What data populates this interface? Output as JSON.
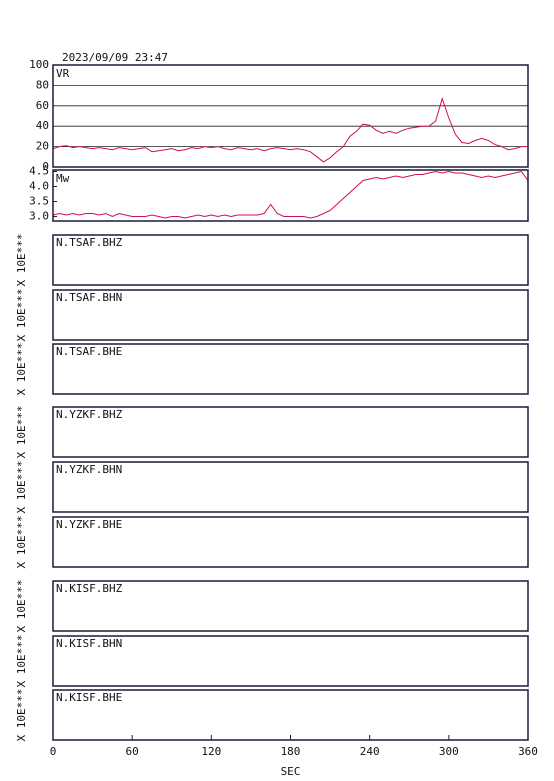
{
  "title": "2023/09/09  23:47",
  "chart_data": [
    {
      "type": "line",
      "label": "VR",
      "color": "#d0104c",
      "grid": true,
      "xlim": [
        0,
        360
      ],
      "ylim": [
        0,
        100
      ],
      "yticks": [
        0,
        20,
        40,
        60,
        80,
        100
      ],
      "x": [
        0,
        5,
        10,
        15,
        20,
        25,
        30,
        35,
        40,
        45,
        50,
        55,
        60,
        65,
        70,
        75,
        80,
        85,
        90,
        95,
        100,
        105,
        110,
        115,
        120,
        125,
        130,
        135,
        140,
        145,
        150,
        155,
        160,
        165,
        170,
        175,
        180,
        185,
        190,
        195,
        200,
        205,
        210,
        215,
        220,
        225,
        230,
        235,
        240,
        245,
        250,
        255,
        260,
        265,
        270,
        275,
        280,
        285,
        290,
        295,
        300,
        305,
        310,
        315,
        320,
        325,
        330,
        335,
        340,
        345,
        350,
        355,
        360
      ],
      "values": [
        18,
        20,
        21,
        19,
        20,
        19,
        18,
        19,
        18,
        17,
        19,
        18,
        17,
        18,
        19,
        15,
        16,
        17,
        18,
        16,
        17,
        19,
        18,
        20,
        19,
        20,
        18,
        17,
        19,
        18,
        17,
        18,
        16,
        18,
        19,
        18,
        17,
        18,
        17,
        15,
        10,
        5,
        9,
        15,
        20,
        30,
        35,
        42,
        41,
        36,
        33,
        35,
        33,
        36,
        38,
        39,
        40,
        40,
        45,
        67,
        48,
        32,
        24,
        23,
        26,
        28,
        26,
        22,
        20,
        17,
        18,
        20,
        20
      ]
    },
    {
      "type": "line",
      "label": "Mw",
      "color": "#d0104c",
      "grid": false,
      "xlim": [
        0,
        360
      ],
      "ylim": [
        2.85,
        4.55
      ],
      "yticks": [
        {
          "value": 3.0,
          "label": "3.0"
        },
        3.5,
        {
          "value": 4.0,
          "label": "4.0"
        },
        4.5
      ],
      "x": [
        0,
        5,
        10,
        15,
        20,
        25,
        30,
        35,
        40,
        45,
        50,
        55,
        60,
        65,
        70,
        75,
        80,
        85,
        90,
        95,
        100,
        105,
        110,
        115,
        120,
        125,
        130,
        135,
        140,
        145,
        150,
        155,
        160,
        165,
        170,
        175,
        180,
        185,
        190,
        195,
        200,
        205,
        210,
        215,
        220,
        225,
        230,
        235,
        240,
        245,
        250,
        255,
        260,
        265,
        270,
        275,
        280,
        285,
        290,
        295,
        300,
        305,
        310,
        315,
        320,
        325,
        330,
        335,
        340,
        345,
        350,
        355,
        360
      ],
      "values": [
        3.05,
        3.1,
        3.05,
        3.1,
        3.05,
        3.1,
        3.1,
        3.05,
        3.1,
        3.0,
        3.1,
        3.05,
        3.0,
        3.0,
        3.0,
        3.05,
        3.0,
        2.95,
        3.0,
        3.0,
        2.95,
        3.0,
        3.05,
        3.0,
        3.05,
        3.0,
        3.05,
        3.0,
        3.05,
        3.05,
        3.05,
        3.05,
        3.1,
        3.4,
        3.1,
        3.0,
        3.0,
        3.0,
        3.0,
        2.95,
        3.0,
        3.1,
        3.2,
        3.4,
        3.6,
        3.8,
        4.0,
        4.2,
        4.25,
        4.3,
        4.25,
        4.3,
        4.35,
        4.3,
        4.35,
        4.4,
        4.4,
        4.45,
        4.5,
        4.45,
        4.5,
        4.45,
        4.45,
        4.4,
        4.35,
        4.3,
        4.35,
        4.3,
        4.35,
        4.4,
        4.45,
        4.5,
        4.2
      ]
    }
  ],
  "waveform_panels": [
    {
      "name": "N.TSAF.BHZ",
      "ylabel": "X 10E***"
    },
    {
      "name": "N.TSAF.BHN",
      "ylabel": "X 10E***"
    },
    {
      "name": "N.TSAF.BHE",
      "ylabel": "X 10E***"
    },
    {
      "name": "N.YZKF.BHZ",
      "ylabel": "X 10E***"
    },
    {
      "name": "N.YZKF.BHN",
      "ylabel": "X 10E***"
    },
    {
      "name": "N.YZKF.BHE",
      "ylabel": "X 10E***"
    },
    {
      "name": "N.KISF.BHZ",
      "ylabel": "X 10E***"
    },
    {
      "name": "N.KISF.BHN",
      "ylabel": "X 10E***"
    },
    {
      "name": "N.KISF.BHE",
      "ylabel": "X 10E***"
    }
  ],
  "x_axis": {
    "label": "SEC",
    "xlim": [
      0,
      360
    ],
    "xticks": [
      0,
      60,
      120,
      180,
      240,
      300,
      360
    ]
  }
}
